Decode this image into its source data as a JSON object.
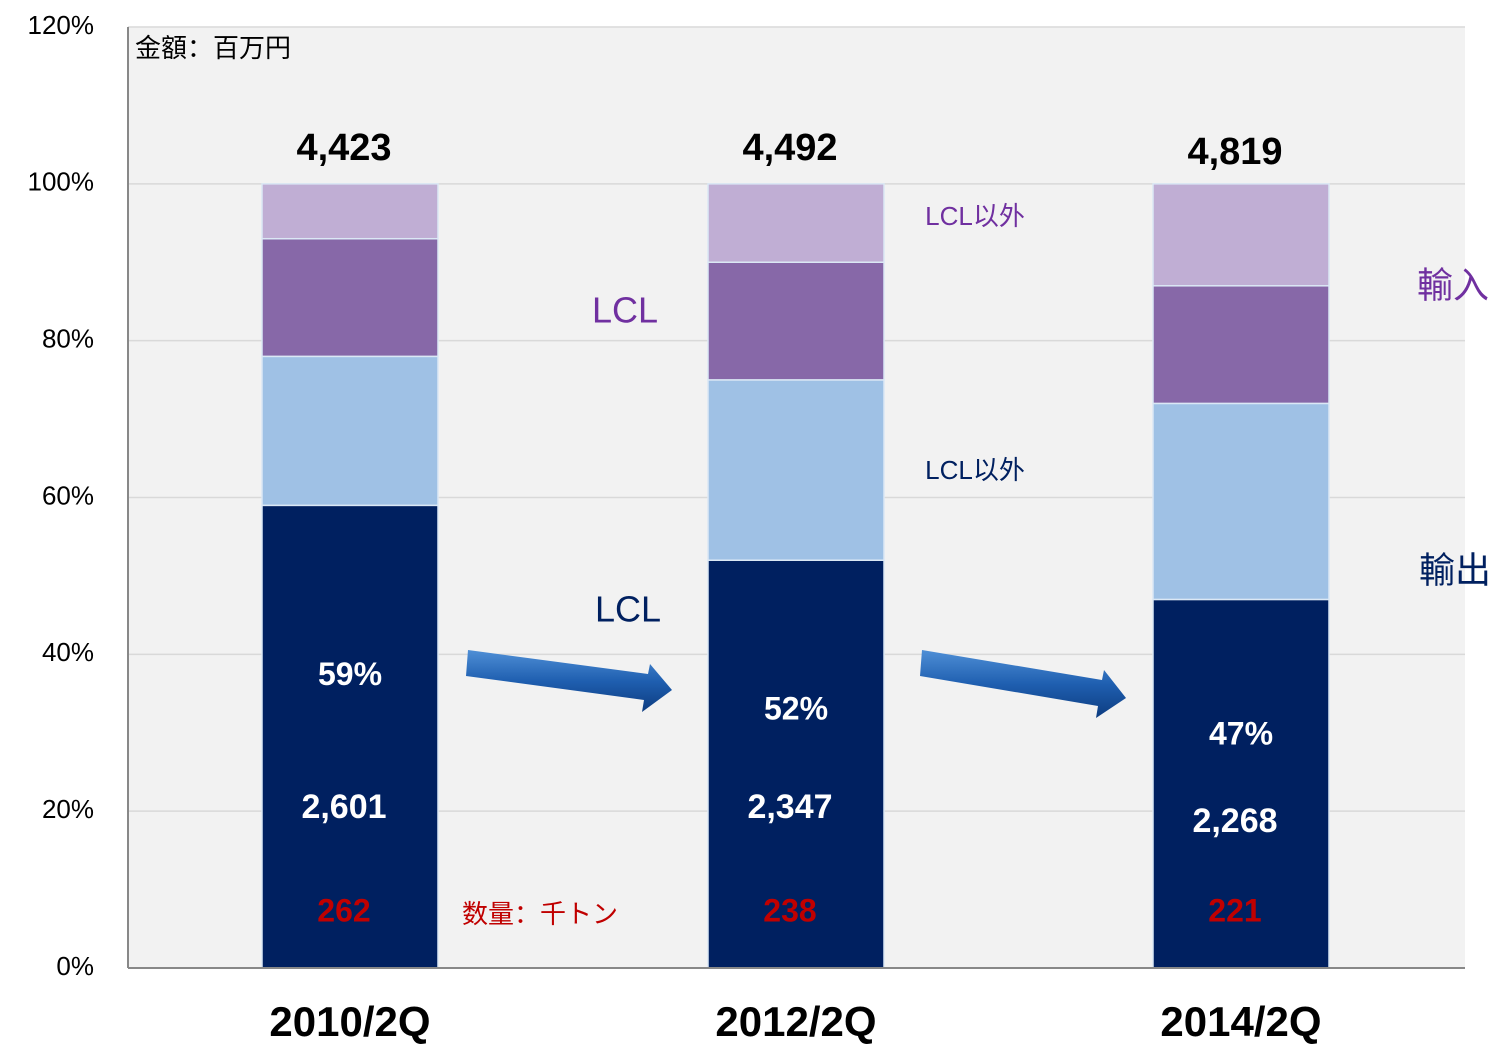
{
  "chart_data": {
    "type": "stacked_bar",
    "categories": [
      "2010/2Q",
      "2012/2Q",
      "2014/2Q"
    ],
    "series": [
      {
        "name": "LCL",
        "color": "#002060",
        "values": [
          59,
          52,
          47
        ],
        "value_labels": [
          "59%",
          "52%",
          "47%"
        ]
      },
      {
        "name": "LCL以外",
        "color": "#9fc1e5",
        "values": [
          19,
          23,
          25
        ]
      },
      {
        "name": "LCL",
        "color": "#8768a8",
        "values": [
          15,
          15,
          15
        ]
      },
      {
        "name": "LCL以外",
        "color": "#c0aed4",
        "values": [
          7,
          10,
          13
        ]
      }
    ],
    "ylim": [
      0,
      120
    ],
    "yticks": [
      {
        "value": 0,
        "label": "0%"
      },
      {
        "value": 20,
        "label": "20%"
      },
      {
        "value": 40,
        "label": "40%"
      },
      {
        "value": 60,
        "label": "60%"
      },
      {
        "value": 80,
        "label": "80%"
      },
      {
        "value": 100,
        "label": "100%"
      },
      {
        "value": 120,
        "label": "120%"
      }
    ],
    "grid": true,
    "totals": [
      {
        "value": 4423,
        "label": "4,423"
      },
      {
        "value": 4492,
        "label": "4,492"
      },
      {
        "value": 4819,
        "label": "4,819"
      }
    ],
    "amounts": [
      {
        "value": 2601,
        "label": "2,601"
      },
      {
        "value": 2347,
        "label": "2,347"
      },
      {
        "value": 2268,
        "label": "2,268"
      }
    ],
    "quantities": [
      262,
      238,
      221
    ],
    "amount_unit": "金額：百万円",
    "quantity_unit": "数量：千トン",
    "group_labels": [
      "輸出",
      "輸入"
    ]
  }
}
